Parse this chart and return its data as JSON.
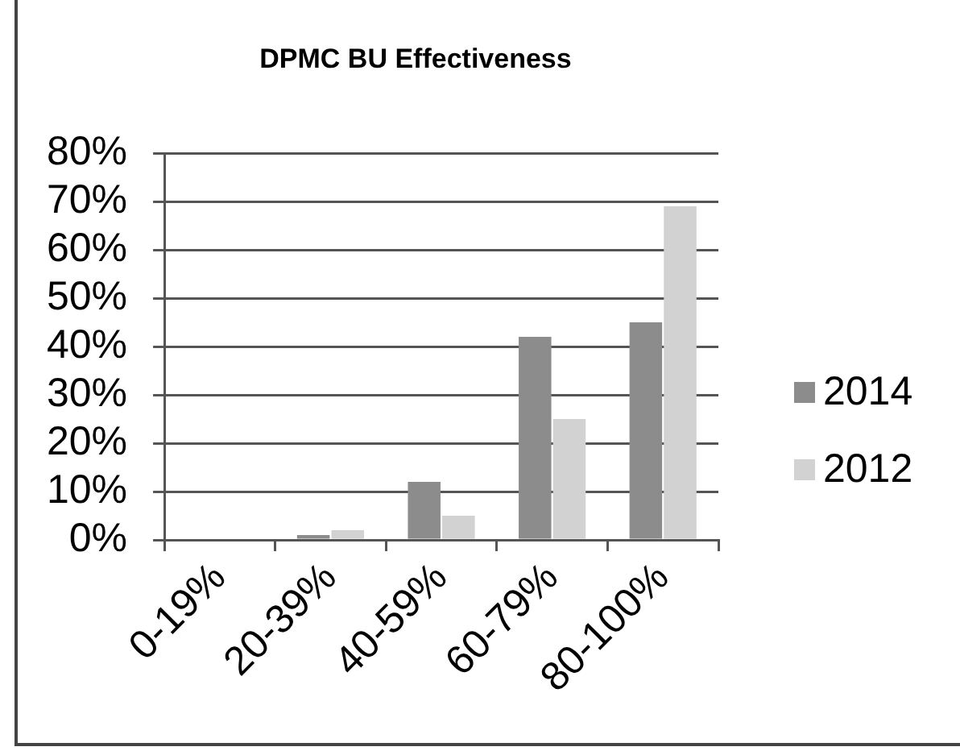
{
  "chart_data": {
    "type": "bar",
    "title": "DPMC BU Effectiveness",
    "categories": [
      "0-19%",
      "20-39%",
      "40-59%",
      "60-79%",
      "80-100%"
    ],
    "series": [
      {
        "name": "2014",
        "color": "#8c8c8c",
        "values": [
          0,
          1,
          12,
          42,
          45
        ]
      },
      {
        "name": "2012",
        "color": "#d2d2d2",
        "values": [
          0,
          2,
          5,
          25,
          69
        ]
      }
    ],
    "ylim": [
      0,
      80
    ],
    "yticks": [
      {
        "value": 0,
        "label": "0%"
      },
      {
        "value": 10,
        "label": "10%"
      },
      {
        "value": 20,
        "label": "20%"
      },
      {
        "value": 30,
        "label": "30%"
      },
      {
        "value": 40,
        "label": "40%"
      },
      {
        "value": 50,
        "label": "50%"
      },
      {
        "value": 60,
        "label": "60%"
      },
      {
        "value": 70,
        "label": "70%"
      },
      {
        "value": 80,
        "label": "80%"
      }
    ],
    "grid": "y",
    "legend": "right"
  }
}
